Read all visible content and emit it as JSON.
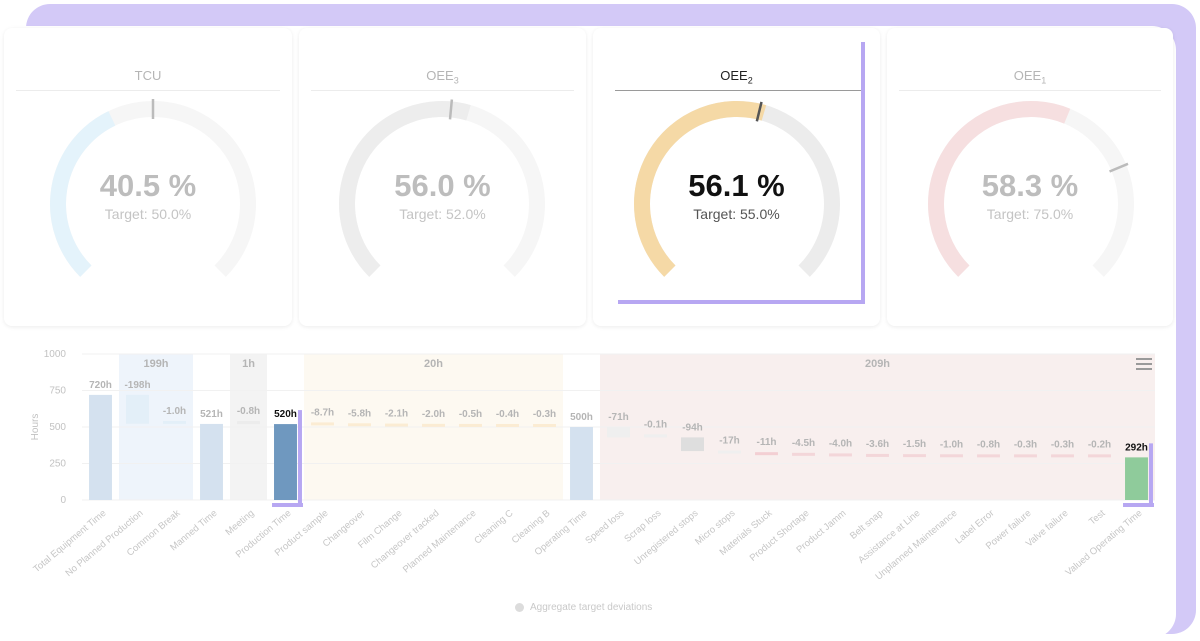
{
  "gauges": [
    {
      "title": "TCU",
      "sub": "",
      "value": "40.5 %",
      "target": "Target: 50.0%",
      "value_num": 40.5,
      "target_num": 50.0,
      "color": "#e4f3fb",
      "active": false
    },
    {
      "title": "OEE",
      "sub": "3",
      "value": "56.0 %",
      "target": "Target: 52.0%",
      "value_num": 56.0,
      "target_num": 52.0,
      "color": "#ededed",
      "active": false
    },
    {
      "title": "OEE",
      "sub": "2",
      "value": "56.1 %",
      "target": "Target: 55.0%",
      "value_num": 56.1,
      "target_num": 55.0,
      "color": "#f5d9a6",
      "active": true
    },
    {
      "title": "OEE",
      "sub": "1",
      "value": "58.3 %",
      "target": "Target: 75.0%",
      "value_num": 58.3,
      "target_num": 75.0,
      "color": "#f6dfe0",
      "active": false
    }
  ],
  "chart_data": {
    "type": "bar",
    "ylabel": "Hours",
    "ylim": [
      0,
      1000
    ],
    "yticks": [
      "0",
      "250",
      "500",
      "750",
      "1000"
    ],
    "groups": [
      {
        "label": "199h",
        "from": 1,
        "to": 2
      },
      {
        "label": "1h",
        "from": 4,
        "to": 4
      },
      {
        "label": "20h",
        "from": 6,
        "to": 12
      },
      {
        "label": "209h",
        "from": 14,
        "to": 28
      }
    ],
    "bars": [
      {
        "name": "Total Equipment Time",
        "label": "720h",
        "start": 0,
        "end": 720,
        "kind": "total",
        "color": "#d4e1ef"
      },
      {
        "name": "No Planned Production",
        "label": "-198h",
        "start": 522,
        "end": 720,
        "kind": "delta",
        "color": "#e3eff8"
      },
      {
        "name": "Common Break",
        "label": "-1.0h",
        "start": 521,
        "end": 522,
        "kind": "delta",
        "color": "#e3eff8"
      },
      {
        "name": "Manned Time",
        "label": "521h",
        "start": 0,
        "end": 521,
        "kind": "total",
        "color": "#d4e1ef"
      },
      {
        "name": "Meeting",
        "label": "-0.8h",
        "start": 520,
        "end": 521,
        "kind": "delta",
        "color": "#ececec"
      },
      {
        "name": "Production Time",
        "label": "520h",
        "start": 0,
        "end": 520,
        "kind": "total",
        "color": "#6f98bf",
        "active": true
      },
      {
        "name": "Product sample",
        "label": "-8.7h",
        "start": 511,
        "end": 520,
        "kind": "delta",
        "color": "#fbecd3"
      },
      {
        "name": "Changeover",
        "label": "-5.8h",
        "start": 505,
        "end": 511,
        "kind": "delta",
        "color": "#fbecd3"
      },
      {
        "name": "Film Change",
        "label": "-2.1h",
        "start": 503,
        "end": 505,
        "kind": "delta",
        "color": "#fbecd3"
      },
      {
        "name": "Changeover tracked",
        "label": "-2.0h",
        "start": 501,
        "end": 503,
        "kind": "delta",
        "color": "#fbecd3"
      },
      {
        "name": "Planned Maintenance",
        "label": "-0.5h",
        "start": 500.5,
        "end": 501,
        "kind": "delta",
        "color": "#fbecd3"
      },
      {
        "name": "Cleaning C",
        "label": "-0.4h",
        "start": 500.1,
        "end": 500.5,
        "kind": "delta",
        "color": "#fbecd3"
      },
      {
        "name": "Cleaning B",
        "label": "-0.3h",
        "start": 500,
        "end": 500.1,
        "kind": "delta",
        "color": "#fbecd3"
      },
      {
        "name": "Operating Time",
        "label": "500h",
        "start": 0,
        "end": 500,
        "kind": "total",
        "color": "#d4e1ef"
      },
      {
        "name": "Speed loss",
        "label": "-71h",
        "start": 429,
        "end": 500,
        "kind": "delta",
        "color": "#efefef"
      },
      {
        "name": "Scrap loss",
        "label": "-0.1h",
        "start": 428.9,
        "end": 429,
        "kind": "delta",
        "color": "#efefef"
      },
      {
        "name": "Unregistered stops",
        "label": "-94h",
        "start": 335,
        "end": 429,
        "kind": "delta",
        "color": "#dedede"
      },
      {
        "name": "Micro stops",
        "label": "-17h",
        "start": 318,
        "end": 335,
        "kind": "delta",
        "color": "#efefef"
      },
      {
        "name": "Materials Stuck",
        "label": "-11h",
        "start": 307,
        "end": 318,
        "kind": "delta",
        "color": "#f3cfd3"
      },
      {
        "name": "Product Shortage",
        "label": "-4.5h",
        "start": 302.5,
        "end": 307,
        "kind": "delta",
        "color": "#f3d6d9"
      },
      {
        "name": "Product Jamm",
        "label": "-4.0h",
        "start": 298.5,
        "end": 302.5,
        "kind": "delta",
        "color": "#f3d6d9"
      },
      {
        "name": "Belt snap",
        "label": "-3.6h",
        "start": 295,
        "end": 298.5,
        "kind": "delta",
        "color": "#f3d6d9"
      },
      {
        "name": "Assistance at Line",
        "label": "-1.5h",
        "start": 293.5,
        "end": 295,
        "kind": "delta",
        "color": "#f3d6d9"
      },
      {
        "name": "Unplanned Maintenance",
        "label": "-1.0h",
        "start": 292.5,
        "end": 293.5,
        "kind": "delta",
        "color": "#f3d6d9"
      },
      {
        "name": "Label Error",
        "label": "-0.8h",
        "start": 292,
        "end": 292.5,
        "kind": "delta",
        "color": "#f3d6d9"
      },
      {
        "name": "Power failure",
        "label": "-0.3h",
        "start": 292,
        "end": 292.3,
        "kind": "delta",
        "color": "#f3d6d9"
      },
      {
        "name": "Valve failure",
        "label": "-0.3h",
        "start": 292,
        "end": 292.3,
        "kind": "delta",
        "color": "#f3d6d9"
      },
      {
        "name": "Test",
        "label": "-0.2h",
        "start": 292,
        "end": 292.2,
        "kind": "delta",
        "color": "#f3d6d9"
      },
      {
        "name": "Valued Operating Time",
        "label": "292h",
        "start": 0,
        "end": 292,
        "kind": "total",
        "color": "#8fcb9b",
        "active": true
      }
    ],
    "legend": "Aggregate target deviations"
  }
}
